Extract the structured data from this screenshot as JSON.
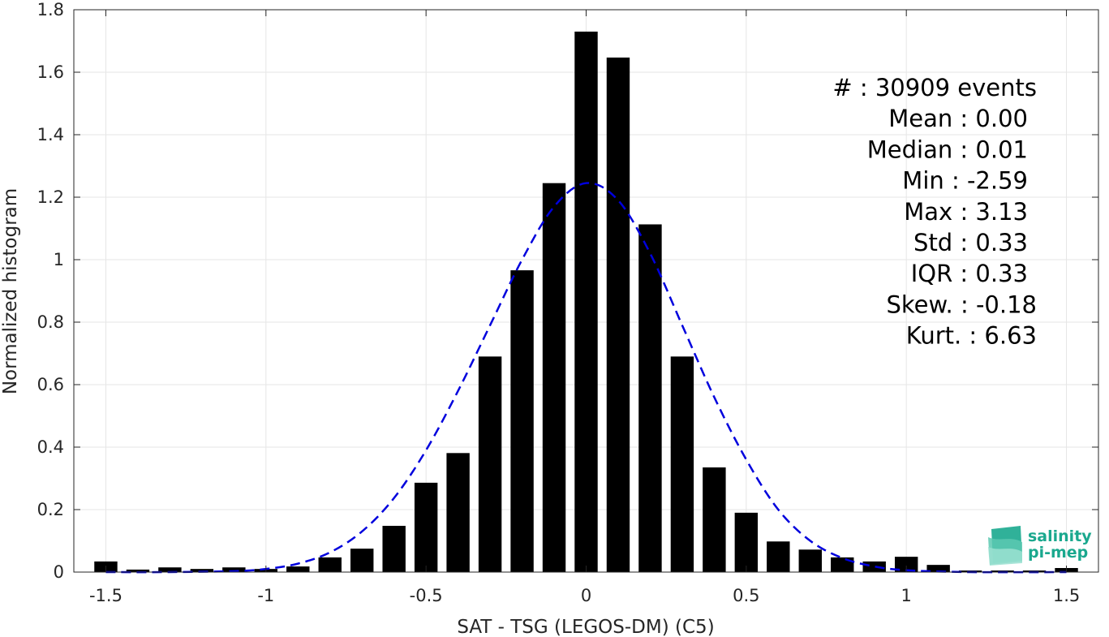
{
  "chart_data": {
    "type": "bar",
    "xlabel": "SAT - TSG (LEGOS-DM) (C5)",
    "ylabel": "Normalized histogram",
    "xlim": [
      -1.6,
      1.6
    ],
    "ylim": [
      0,
      1.8
    ],
    "xticks": [
      -1.5,
      -1,
      -0.5,
      0,
      0.5,
      1,
      1.5
    ],
    "xtick_labels": [
      "-1.5",
      "-1",
      "-0.5",
      "0",
      "0.5",
      "1",
      "1.5"
    ],
    "yticks": [
      0,
      0.2,
      0.4,
      0.6,
      0.8,
      1,
      1.2,
      1.4,
      1.6,
      1.8
    ],
    "ytick_labels": [
      "0",
      "0.2",
      "0.4",
      "0.6",
      "0.8",
      "1",
      "1.2",
      "1.4",
      "1.6",
      "1.8"
    ],
    "grid": true,
    "bin_width": 0.1,
    "bar_color": "#000000",
    "bins": [
      {
        "x": -1.5,
        "y": 0.034
      },
      {
        "x": -1.4,
        "y": 0.008
      },
      {
        "x": -1.3,
        "y": 0.015
      },
      {
        "x": -1.2,
        "y": 0.01
      },
      {
        "x": -1.1,
        "y": 0.015
      },
      {
        "x": -1.0,
        "y": 0.01
      },
      {
        "x": -0.9,
        "y": 0.018
      },
      {
        "x": -0.8,
        "y": 0.047
      },
      {
        "x": -0.7,
        "y": 0.075
      },
      {
        "x": -0.6,
        "y": 0.148
      },
      {
        "x": -0.5,
        "y": 0.286
      },
      {
        "x": -0.4,
        "y": 0.381
      },
      {
        "x": -0.3,
        "y": 0.69
      },
      {
        "x": -0.2,
        "y": 0.966
      },
      {
        "x": -0.1,
        "y": 1.245
      },
      {
        "x": 0.0,
        "y": 1.73
      },
      {
        "x": 0.1,
        "y": 1.647
      },
      {
        "x": 0.2,
        "y": 1.113
      },
      {
        "x": 0.3,
        "y": 0.69
      },
      {
        "x": 0.4,
        "y": 0.335
      },
      {
        "x": 0.5,
        "y": 0.19
      },
      {
        "x": 0.6,
        "y": 0.098
      },
      {
        "x": 0.7,
        "y": 0.072
      },
      {
        "x": 0.8,
        "y": 0.047
      },
      {
        "x": 0.9,
        "y": 0.034
      },
      {
        "x": 1.0,
        "y": 0.049
      },
      {
        "x": 1.1,
        "y": 0.023
      },
      {
        "x": 1.2,
        "y": 0.005
      },
      {
        "x": 1.3,
        "y": 0.005
      },
      {
        "x": 1.4,
        "y": 0.005
      },
      {
        "x": 1.5,
        "y": 0.013
      }
    ],
    "fit_curve": {
      "type": "gaussian",
      "style": "dashed",
      "color": "#0000dd",
      "points": [
        {
          "x": -1.5,
          "y": 0.0
        },
        {
          "x": -1.3,
          "y": 0.0
        },
        {
          "x": -1.1,
          "y": 0.003
        },
        {
          "x": -1.0,
          "y": 0.01
        },
        {
          "x": -0.9,
          "y": 0.027
        },
        {
          "x": -0.8,
          "y": 0.063
        },
        {
          "x": -0.7,
          "y": 0.13
        },
        {
          "x": -0.6,
          "y": 0.237
        },
        {
          "x": -0.5,
          "y": 0.39
        },
        {
          "x": -0.4,
          "y": 0.58
        },
        {
          "x": -0.3,
          "y": 0.79
        },
        {
          "x": -0.2,
          "y": 1.0
        },
        {
          "x": -0.1,
          "y": 1.17
        },
        {
          "x": 0.0,
          "y": 1.245
        },
        {
          "x": 0.1,
          "y": 1.19
        },
        {
          "x": 0.2,
          "y": 1.02
        },
        {
          "x": 0.3,
          "y": 0.79
        },
        {
          "x": 0.4,
          "y": 0.56
        },
        {
          "x": 0.5,
          "y": 0.36
        },
        {
          "x": 0.6,
          "y": 0.2
        },
        {
          "x": 0.7,
          "y": 0.1
        },
        {
          "x": 0.8,
          "y": 0.045
        },
        {
          "x": 0.9,
          "y": 0.018
        },
        {
          "x": 1.0,
          "y": 0.006
        },
        {
          "x": 1.2,
          "y": 0.0
        },
        {
          "x": 1.5,
          "y": 0.0
        }
      ]
    },
    "stats": [
      {
        "label": "#  : 30909 events"
      },
      {
        "label": "Mean : 0.00"
      },
      {
        "label": "Median : 0.01"
      },
      {
        "label": "Min : -2.59"
      },
      {
        "label": "Max : 3.13"
      },
      {
        "label": "Std : 0.33"
      },
      {
        "label": "IQR : 0.33"
      },
      {
        "label": "Skew. : -0.18"
      },
      {
        "label": "Kurt. : 6.63"
      }
    ]
  },
  "logo": {
    "line1": "salinity",
    "line2": "pi-mep",
    "color": "#1aa88e"
  }
}
